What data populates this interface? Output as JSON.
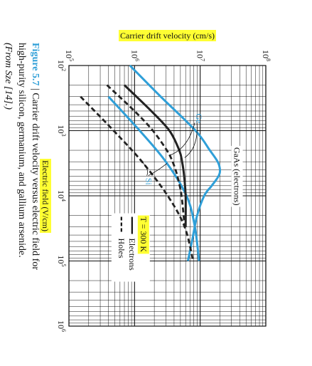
{
  "chart_data": {
    "type": "line",
    "xlabel": "Electric field (V/cm)",
    "ylabel": "Carrier drift velocity (cm/s)",
    "xscale": "log",
    "yscale": "log",
    "xlim": [
      100,
      1000000
    ],
    "ylim": [
      100000,
      100000000
    ],
    "x_ticks": [
      {
        "value": 100,
        "base": "10",
        "exp": "2"
      },
      {
        "value": 1000,
        "base": "10",
        "exp": "3"
      },
      {
        "value": 10000,
        "base": "10",
        "exp": "4"
      },
      {
        "value": 100000,
        "base": "10",
        "exp": "5"
      },
      {
        "value": 1000000,
        "base": "10",
        "exp": "6"
      }
    ],
    "y_ticks": [
      {
        "value": 100000,
        "base": "10",
        "exp": "5"
      },
      {
        "value": 1000000,
        "base": "10",
        "exp": "6"
      },
      {
        "value": 10000000,
        "base": "10",
        "exp": "7"
      },
      {
        "value": 100000000,
        "base": "10",
        "exp": "8"
      }
    ],
    "grid": true,
    "temperature_label": "T = 300 K",
    "legend": [
      {
        "label": "Electrons",
        "style": "solid"
      },
      {
        "label": "Holes",
        "style": "dashed"
      }
    ],
    "series": [
      {
        "name": "GaAs (electrons)",
        "material": "GaAs",
        "carrier": "electrons",
        "color": "#2f9fd8",
        "style": "solid",
        "x": [
          100,
          300,
          1000,
          2000,
          3000,
          4000,
          5000,
          7000,
          10000,
          20000,
          50000,
          100000
        ],
        "y": [
          850000,
          2500000,
          8500000,
          14000000,
          18500000,
          20000000,
          19000000,
          15000000,
          11500000,
          9000000,
          7500000,
          6500000
        ]
      },
      {
        "name": "Si",
        "material": "Si",
        "carrier": "electrons",
        "color": "#2f9fd8",
        "style": "solid",
        "x": [
          300,
          1000,
          3000,
          10000,
          30000,
          100000
        ],
        "y": [
          400000,
          1200000,
          3000000,
          6200000,
          8300000,
          9600000
        ]
      },
      {
        "name": "Ge",
        "material": "Ge",
        "carrier": "electrons",
        "color": "#222222",
        "style": "solid",
        "x": [
          200,
          500,
          1000,
          2000,
          3000,
          5000,
          10000,
          30000
        ],
        "y": [
          700000,
          1800000,
          3400000,
          4800000,
          5300000,
          5700000,
          6000000,
          6000000
        ]
      },
      {
        "name": "Ge",
        "material": "Ge",
        "carrier": "holes",
        "color": "#222222",
        "style": "dashed",
        "x": [
          200,
          500,
          1000,
          2000,
          3000,
          5000,
          10000,
          30000
        ],
        "y": [
          380000,
          1000000,
          1900000,
          3100000,
          3800000,
          4500000,
          5200000,
          5800000
        ]
      },
      {
        "name": "Si",
        "material": "Si",
        "carrier": "holes",
        "color": "#222222",
        "style": "dashed",
        "x": [
          300,
          1000,
          3000,
          10000,
          30000,
          100000
        ],
        "y": [
          150000,
          480000,
          1300000,
          3200000,
          5800000,
          7800000
        ]
      }
    ],
    "annotations": [
      {
        "text": "Ge",
        "color": "#2f9fd8",
        "points_to": "Ge"
      },
      {
        "text": "Si",
        "color": "#2f9fd8",
        "points_to": "Si"
      },
      {
        "text": "GaAs (electrons)",
        "color": "#111111",
        "points_to": "GaAs (electrons)"
      }
    ]
  },
  "caption": {
    "label": "Figure 5.7",
    "separator": " | ",
    "line1": "Carrier drift velocity versus electric field for",
    "line2": "high-purity silicon, germanium, and gallium arsenide.",
    "line3": "(From Sze [14].)"
  },
  "colors": {
    "highlight": "#ffff33",
    "figure_label": "#2f9fd8",
    "curve_blue": "#2f9fd8",
    "curve_black": "#222222",
    "legend_label_bg": "#ffff33"
  }
}
